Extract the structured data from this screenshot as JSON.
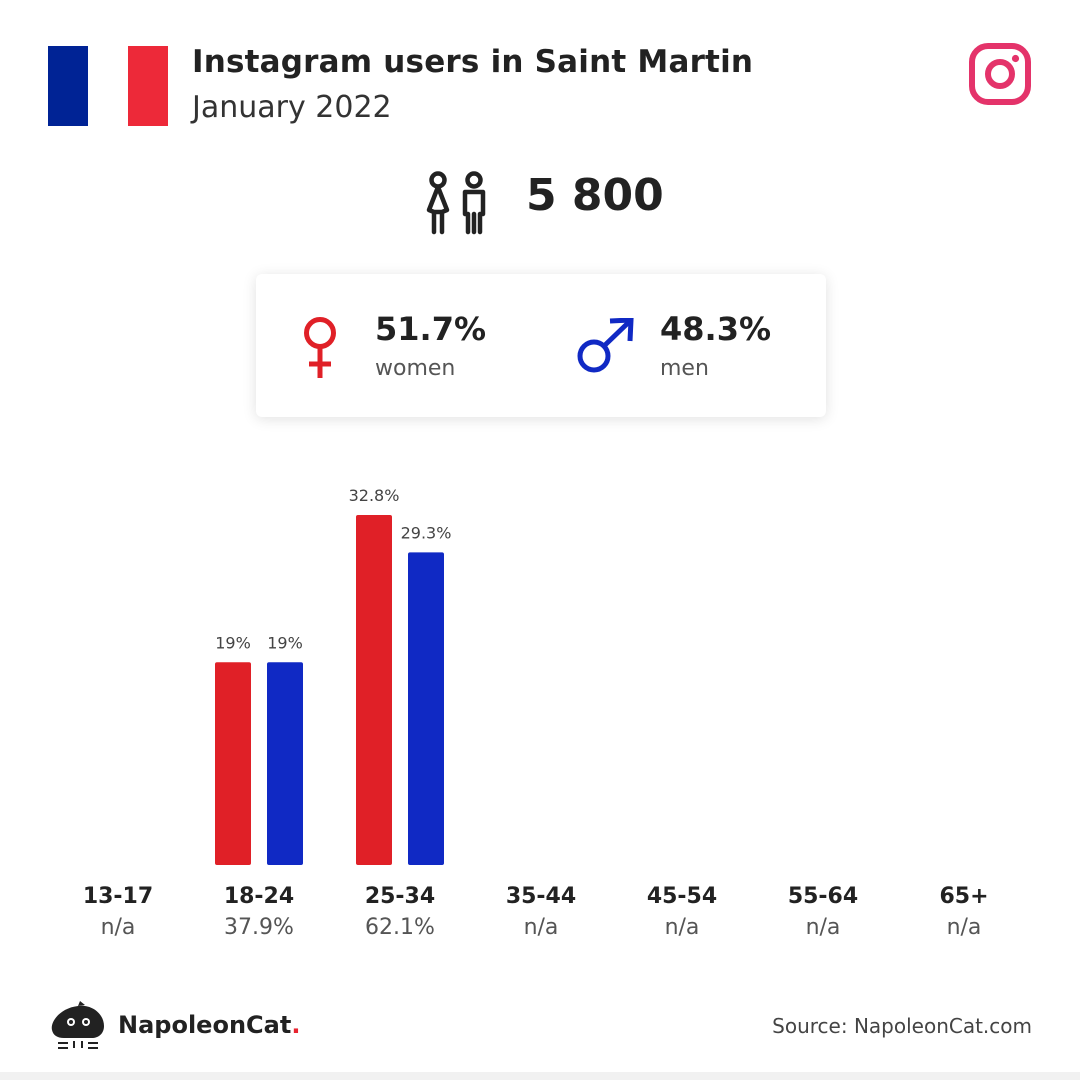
{
  "header": {
    "title": "Instagram users in Saint Martin",
    "subtitle": "January 2022"
  },
  "flag_colors": [
    "#002395",
    "#ffffff",
    "#ed2939"
  ],
  "icons": {
    "platform": "instagram-icon",
    "total": "people-icon",
    "women": "female-symbol-icon",
    "men": "male-symbol-icon",
    "brand": "napoleoncat-logo-icon"
  },
  "total": {
    "value": "5 800"
  },
  "gender": {
    "women": {
      "pct": "51.7%",
      "label": "women"
    },
    "men": {
      "pct": "48.3%",
      "label": "men"
    }
  },
  "colors": {
    "women": "#e02027",
    "men": "#1029c4",
    "instagram": "#e4336a"
  },
  "chart_data": {
    "type": "bar",
    "categories": [
      "13-17",
      "18-24",
      "25-34",
      "35-44",
      "45-54",
      "55-64",
      "65+"
    ],
    "category_totals": [
      "n/a",
      "37.9%",
      "62.1%",
      "n/a",
      "n/a",
      "n/a",
      "n/a"
    ],
    "series": [
      {
        "name": "women",
        "values": [
          null,
          19,
          32.8,
          null,
          null,
          null,
          null
        ],
        "labels": [
          null,
          "19%",
          "32.8%",
          null,
          null,
          null,
          null
        ]
      },
      {
        "name": "men",
        "values": [
          null,
          19,
          29.3,
          null,
          null,
          null,
          null
        ],
        "labels": [
          null,
          "19%",
          "29.3%",
          null,
          null,
          null,
          null
        ]
      }
    ],
    "ylim": [
      0,
      35
    ],
    "grid": false
  },
  "footer": {
    "brand_name": "NapoleonCat",
    "brand_dot": ".",
    "source": "Source: NapoleonCat.com"
  }
}
